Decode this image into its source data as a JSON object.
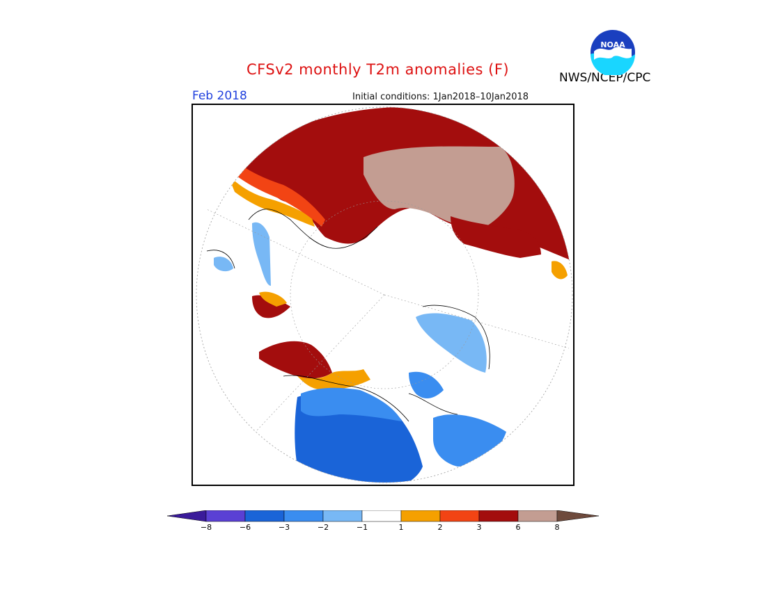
{
  "title": "CFSv2 monthly T2m anomalies (F)",
  "month_label": "Feb 2018",
  "initial_conditions": "Initial conditions: 1Jan2018–10Jan2018",
  "agency": "NWS/NCEP/CPC",
  "logo_text": "NOAA",
  "colors": {
    "title": "#dd1111",
    "month": "#2040dd",
    "bins": [
      "#3a1b9a",
      "#5a40d4",
      "#1a64d8",
      "#3a8df0",
      "#78b8f5",
      "#ffffff",
      "#f5a000",
      "#f24414",
      "#a30d0d",
      "#c39d92",
      "#6e4a3c"
    ]
  },
  "legend": {
    "ticks": [
      "−8",
      "−6",
      "−3",
      "−2",
      "−1",
      "1",
      "2",
      "3",
      "6",
      "8"
    ]
  }
}
